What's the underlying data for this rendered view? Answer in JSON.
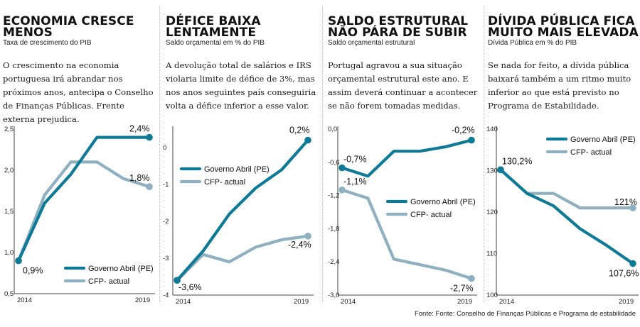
{
  "colors": {
    "governo": "#0e7a96",
    "cfp": "#8fb0c0",
    "axis": "#444444",
    "grid": "#d8d8d8"
  },
  "panels": [
    {
      "title": "ECONOMIA CRESCE MENOS",
      "subtitle": "Taxa de crescimento do PIB",
      "description": "O crescimento na economia portuguesa irá abrandar nos próximos anos, antecipa o Conselho de Finanças Públicas. Frente externa prejudica."
    },
    {
      "title": "DÉFICE BAIXA LENTAMENTE",
      "subtitle": "Saldo orçamental em % do PIB",
      "description": "A devolução total de salários e IRS violaria limite de défice de 3%, mas nos anos seguintes país conseguiria volta a défice inferior a esse valor."
    },
    {
      "title": "SALDO ESTRUTURAL NÃO PÁRA DE SUBIR",
      "subtitle": "Saldo orçamental estrutural",
      "description": "Portugal agravou a sua situação orçamental estrutural este ano. E assim deverá continuar a acontecer se não forem tomadas medidas."
    },
    {
      "title": "DÍVIDA PÚBLICA FICA MUITO MAIS ELEVADA",
      "subtitle": "Dívida Pública em % do PIB",
      "description": "Se nada for feito, a dívida pública baixará também a um ritmo muito inferior ao que está previsto no Programa de Estabilidade."
    }
  ],
  "chart_data": [
    {
      "type": "line",
      "x": [
        2014,
        2015,
        2016,
        2017,
        2018,
        2019
      ],
      "xticks": [
        "2014",
        "2019"
      ],
      "ylim": [
        0.5,
        2.5
      ],
      "yticks": [
        "0,5",
        "1,0",
        "1,5",
        "2,0",
        "2,5"
      ],
      "yticks_values": [
        0.5,
        1.0,
        1.5,
        2.0,
        2.5
      ],
      "legend_position": "bottom-right",
      "series": [
        {
          "name": "Governo Abril (PE)",
          "color": "#0e7a96",
          "values": [
            0.9,
            1.6,
            1.95,
            2.4,
            2.4,
            2.4
          ]
        },
        {
          "name": "CFP- actual",
          "color": "#8fb0c0",
          "values": [
            0.9,
            1.7,
            2.1,
            2.1,
            1.9,
            1.8
          ]
        }
      ],
      "annotations": [
        {
          "text": "0,9%",
          "x": 2014,
          "y": 0.9
        },
        {
          "text": "2,4%",
          "x": 2019,
          "y": 2.4
        },
        {
          "text": "1,8%",
          "x": 2019,
          "y": 1.8
        }
      ]
    },
    {
      "type": "line",
      "x": [
        2014,
        2015,
        2016,
        2017,
        2018,
        2019
      ],
      "xticks": [
        "2014",
        "2019"
      ],
      "ylim": [
        -4,
        0.5
      ],
      "yticks": [
        "-4",
        "-3",
        "-2",
        "-1",
        "0"
      ],
      "yticks_values": [
        -4,
        -3,
        -2,
        -1,
        0
      ],
      "legend_position": "top-left",
      "series": [
        {
          "name": "Governo Abril (PE)",
          "color": "#0e7a96",
          "values": [
            -3.6,
            -2.8,
            -1.8,
            -1.1,
            -0.6,
            0.2
          ]
        },
        {
          "name": "CFP- actual",
          "color": "#8fb0c0",
          "values": [
            -3.6,
            -2.9,
            -3.1,
            -2.7,
            -2.5,
            -2.4
          ]
        }
      ],
      "annotations": [
        {
          "text": "-3,6%",
          "x": 2014,
          "y": -3.6
        },
        {
          "text": "0,2%",
          "x": 2019,
          "y": 0.2
        },
        {
          "text": "-2,4%",
          "x": 2019,
          "y": -2.4
        }
      ]
    },
    {
      "type": "line",
      "x": [
        2014,
        2015,
        2016,
        2017,
        2018,
        2019
      ],
      "xticks": [
        "2014",
        "2019"
      ],
      "ylim": [
        -3.0,
        0.0
      ],
      "yticks": [
        "-3,0",
        "-2,4",
        "-1,8",
        "-1,2",
        "-0,6",
        "0,0"
      ],
      "yticks_values": [
        -3.0,
        -2.4,
        -1.8,
        -1.2,
        -0.6,
        0.0
      ],
      "legend_position": "center-right",
      "series": [
        {
          "name": "Governo Abril (PE)",
          "color": "#0e7a96",
          "values": [
            -0.7,
            -0.85,
            -0.4,
            -0.4,
            -0.32,
            -0.2
          ]
        },
        {
          "name": "CFP- actual",
          "color": "#8fb0c0",
          "values": [
            -1.1,
            -1.25,
            -2.35,
            -2.45,
            -2.55,
            -2.7
          ]
        }
      ],
      "annotations": [
        {
          "text": "-0,7%",
          "x": 2014,
          "y": -0.7
        },
        {
          "text": "-0,2%",
          "x": 2019,
          "y": -0.2
        },
        {
          "text": "-1,1%",
          "x": 2014,
          "y": -1.1
        },
        {
          "text": "-2,7%",
          "x": 2019,
          "y": -2.7
        }
      ]
    },
    {
      "type": "line",
      "x": [
        2014,
        2015,
        2016,
        2017,
        2018,
        2019
      ],
      "xticks": [
        "2014",
        "2019"
      ],
      "ylim": [
        100,
        140
      ],
      "yticks": [
        "100",
        "110",
        "120",
        "130",
        "140"
      ],
      "yticks_values": [
        100,
        110,
        120,
        130,
        140
      ],
      "legend_position": "top-right",
      "series": [
        {
          "name": "Governo Abril (PE)",
          "color": "#0e7a96",
          "values": [
            130.2,
            124.5,
            121.5,
            116,
            112,
            107.6
          ]
        },
        {
          "name": "CFP- actual",
          "color": "#8fb0c0",
          "values": [
            130.2,
            124.5,
            124.5,
            121,
            121,
            121
          ]
        }
      ],
      "annotations": [
        {
          "text": "130,2%",
          "x": 2014,
          "y": 130.2
        },
        {
          "text": "121%",
          "x": 2019,
          "y": 121
        },
        {
          "text": "107,6%",
          "x": 2019,
          "y": 107.6
        }
      ]
    }
  ],
  "source": "Fonte: Fonte: Conselho de Finanças Públicas e Programa de estabilidade"
}
